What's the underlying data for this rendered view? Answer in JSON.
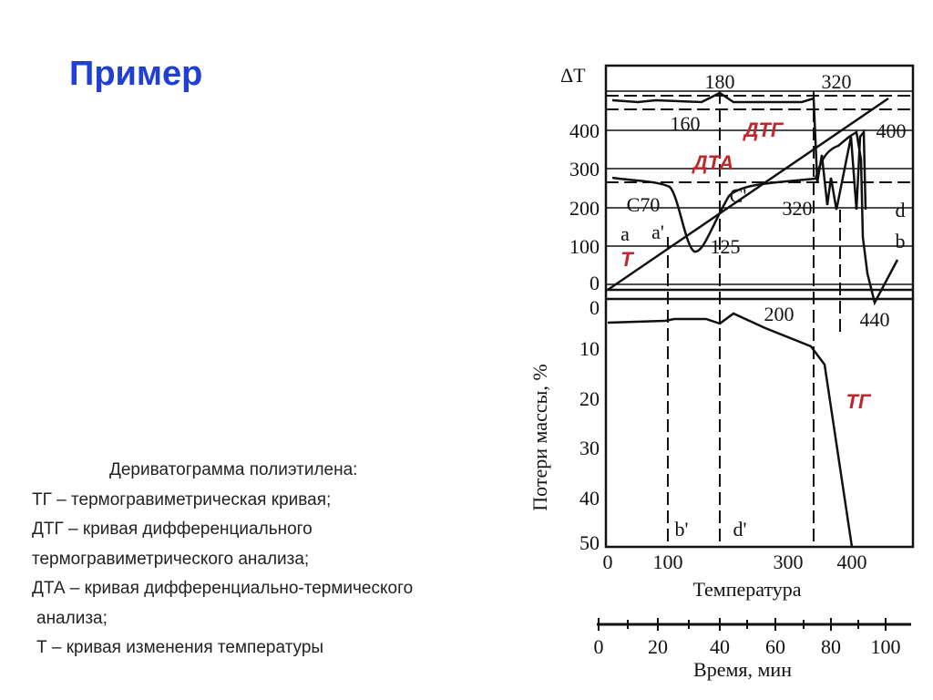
{
  "title": "Пример",
  "caption": [
    "Дериватограмма полиэтилена:",
    "ТГ – термогравиметрическая кривая;",
    "ДТГ – кривая дифференциального",
    "термогравиметрического анализа;",
    "ДТА – кривая дифференциально-термического",
    "анализа;",
    "Т – кривая изменения температуры"
  ],
  "figure": {
    "upper_axis_label": "ΔT",
    "upper_ticks": [
      "400",
      "300",
      "200",
      "100",
      "0"
    ],
    "lower_axis_label": "Потери массы, %",
    "lower_ticks": [
      "0",
      "10",
      "20",
      "30",
      "40",
      "50"
    ],
    "x_ticks": [
      "0",
      "100",
      "300",
      "400"
    ],
    "x_label": "Температура",
    "time_ticks": [
      "0",
      "20",
      "40",
      "60",
      "80",
      "100"
    ],
    "time_label": "Время, мин",
    "annotations": {
      "peak_180": "180",
      "peak_320_top": "320",
      "peak_160": "160",
      "dtg": "ДТГ",
      "peak_400": "400",
      "dta": "ДТА",
      "c70": "С70",
      "c_prime": "С'",
      "peak_320_mid": "320",
      "d": "d",
      "a": "a",
      "a_prime": "a'",
      "peak_125": "125",
      "b": "b",
      "t": "Т",
      "peak_440": "440",
      "tg_200": "200",
      "tg": "ТГ",
      "b_prime": "b'",
      "d_prime": "d'"
    }
  }
}
